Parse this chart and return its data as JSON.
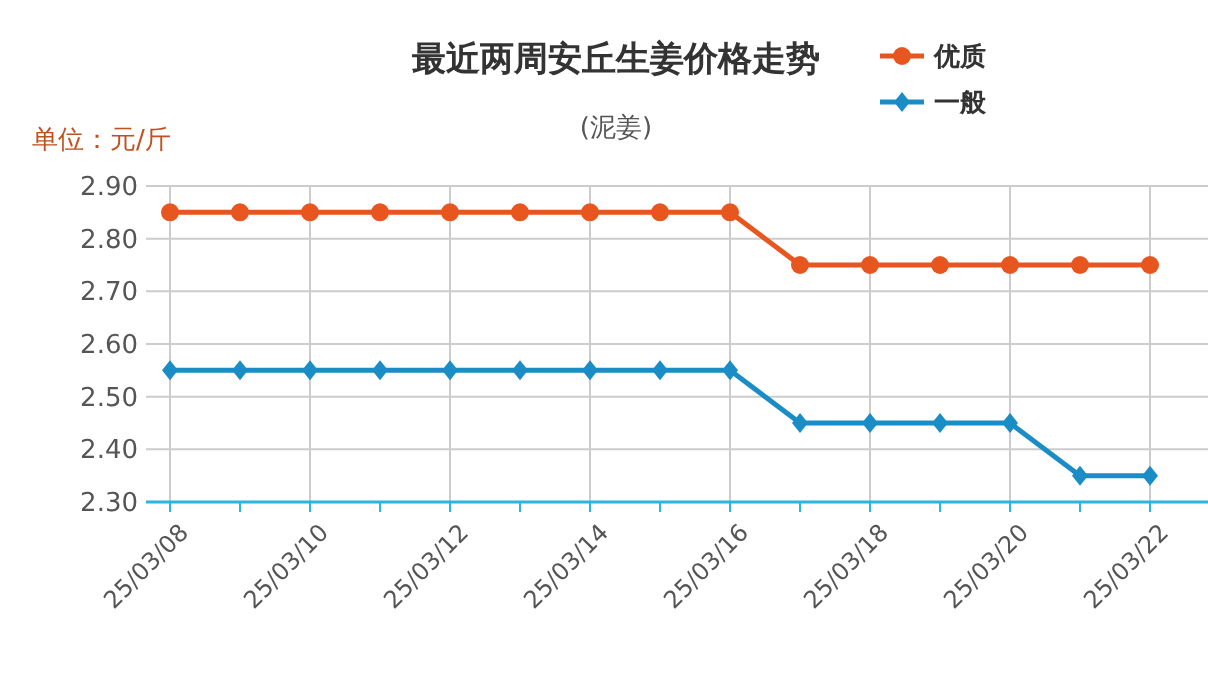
{
  "chart_data": {
    "type": "line",
    "title": "最近两周安丘生姜价格走势",
    "subtitle": "(泥姜)",
    "ylabel": "单位：元/斤",
    "categories": [
      "25/03/08",
      null,
      "25/03/10",
      null,
      "25/03/12",
      null,
      "25/03/14",
      null,
      "25/03/16",
      null,
      "25/03/18",
      null,
      "25/03/20",
      null,
      "25/03/22"
    ],
    "series": [
      {
        "name": "优质",
        "color": "#e8561f",
        "marker": "circle",
        "values": [
          2.85,
          2.85,
          2.85,
          2.85,
          2.85,
          2.85,
          2.85,
          2.85,
          2.85,
          2.75,
          2.75,
          2.75,
          2.75,
          2.75,
          2.75
        ]
      },
      {
        "name": "一般",
        "color": "#1a8dc6",
        "marker": "diamond",
        "values": [
          2.55,
          2.55,
          2.55,
          2.55,
          2.55,
          2.55,
          2.55,
          2.55,
          2.55,
          2.45,
          2.45,
          2.45,
          2.45,
          2.35,
          2.35
        ]
      }
    ],
    "ylim": [
      2.3,
      2.9
    ],
    "yticks": [
      {
        "value": 2.3,
        "label": "2.30"
      },
      {
        "value": 2.4,
        "label": "2.40"
      },
      {
        "value": 2.5,
        "label": "2.50"
      },
      {
        "value": 2.6,
        "label": "2.60"
      },
      {
        "value": 2.7,
        "label": "2.70"
      },
      {
        "value": 2.8,
        "label": "2.80"
      },
      {
        "value": 2.9,
        "label": "2.90"
      }
    ],
    "grid": true,
    "legend": "top right"
  }
}
